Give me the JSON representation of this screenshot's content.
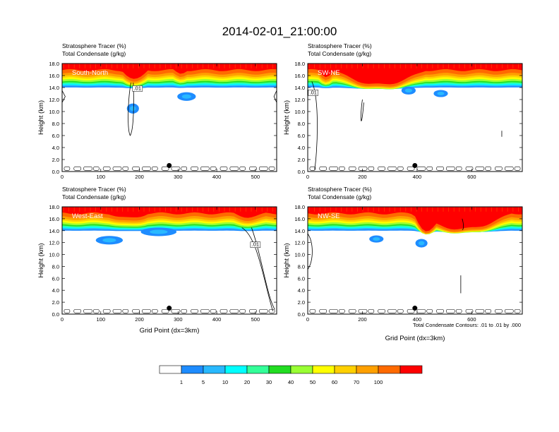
{
  "figure": {
    "title": "2014-02-01_21:00:00",
    "footnote": "Total Condensate Contours: .01 to .01 by .000"
  },
  "colors": {
    "levels": [
      "#ffffff",
      "#1e8cff",
      "#29b9ff",
      "#00ffff",
      "#33ff99",
      "#22dd22",
      "#99ff33",
      "#ffff00",
      "#ffd000",
      "#ffa000",
      "#ff6a00",
      "#ff0000"
    ],
    "line": "#000000"
  },
  "colorbar": {
    "labels": [
      "1",
      "5",
      "10",
      "20",
      "30",
      "40",
      "50",
      "60",
      "70",
      "100"
    ]
  },
  "chart_data": [
    {
      "type": "heatmap",
      "label": "South-North",
      "title_lines": [
        "Stratosphere Tracer   (%)",
        "Total Condensate   (g/kg)"
      ],
      "ylabel": "Height (km)",
      "xlabel": "",
      "xlim": [
        0,
        555
      ],
      "ylim": [
        0,
        18
      ],
      "xticks": [
        0,
        100,
        200,
        300,
        400,
        500
      ],
      "yticks": [
        "0.0",
        "2.0",
        "4.0",
        "6.0",
        "8.0",
        "10.0",
        "12.0",
        "14.0",
        "16.0",
        "18.0"
      ],
      "contour_label": ".01",
      "dot": [
        277,
        1.0
      ]
    },
    {
      "type": "heatmap",
      "label": "SW-NE",
      "title_lines": [
        "Stratosphere Tracer   (%)",
        "Total Condensate   (g/kg)"
      ],
      "ylabel": "Height (km)",
      "xlabel": "",
      "xlim": [
        0,
        785
      ],
      "ylim": [
        0,
        18
      ],
      "xticks": [
        0,
        200,
        400,
        600
      ],
      "yticks": [
        "0.0",
        "2.0",
        "4.0",
        "6.0",
        "8.0",
        "10.0",
        "12.0",
        "14.0",
        "16.0",
        "18.0"
      ],
      "contour_label": ".01",
      "dot": [
        392,
        1.0
      ]
    },
    {
      "type": "heatmap",
      "label": "West-East",
      "title_lines": [
        "Stratosphere Tracer   (%)",
        "Total Condensate   (g/kg)"
      ],
      "ylabel": "Height (km)",
      "xlabel": "Grid Point (dx=3km)",
      "xlim": [
        0,
        555
      ],
      "ylim": [
        0,
        18
      ],
      "xticks": [
        0,
        100,
        200,
        300,
        400,
        500
      ],
      "yticks": [
        "0.0",
        "2.0",
        "4.0",
        "6.0",
        "8.0",
        "10.0",
        "12.0",
        "14.0",
        "16.0",
        "18.0"
      ],
      "contour_label": ".01",
      "dot": [
        277,
        1.0
      ]
    },
    {
      "type": "heatmap",
      "label": "NW-SE",
      "title_lines": [
        "Stratosphere Tracer   (%)",
        "Total Condensate   (g/kg)"
      ],
      "ylabel": "Height (km)",
      "xlabel": "Grid Point (dx=3km)",
      "xlim": [
        0,
        785
      ],
      "ylim": [
        0,
        18
      ],
      "xticks": [
        0,
        200,
        400,
        600
      ],
      "yticks": [
        "0.0",
        "2.0",
        "4.0",
        "6.0",
        "8.0",
        "10.0",
        "12.0",
        "14.0",
        "16.0",
        "18.0"
      ],
      "contour_label": "",
      "dot": [
        392,
        1.0
      ]
    }
  ]
}
